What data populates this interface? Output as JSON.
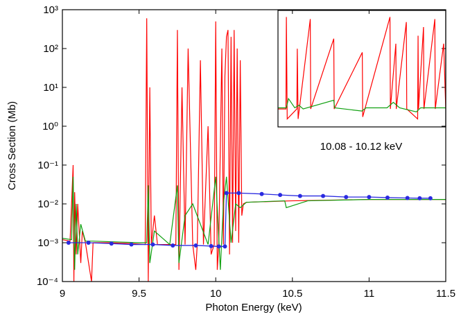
{
  "chart_data": [
    {
      "type": "line",
      "xlabel": "Photon Energy (keV)",
      "ylabel": "Cross Section (Mb)",
      "log_y": true,
      "xlim": [
        9,
        11.5
      ],
      "xticks": [
        9,
        9.5,
        10,
        10.5,
        11,
        11.5
      ],
      "ylim": [
        0.0001,
        1000
      ],
      "yticks": [
        {
          "value": 0.0001,
          "label": "10⁻⁴"
        },
        {
          "value": 0.001,
          "label": "10⁻³"
        },
        {
          "value": 0.01,
          "label": "10⁻²"
        },
        {
          "value": 0.1,
          "label": "10⁻¹"
        },
        {
          "value": 1,
          "label": "10⁰"
        },
        {
          "value": 10,
          "label": "10¹"
        },
        {
          "value": 100,
          "label": "10²"
        },
        {
          "value": 1000,
          "label": "10³"
        }
      ],
      "series": [
        {
          "color": "#ff0000",
          "x": [
            9,
            9.05,
            9.07,
            9.075,
            9.08,
            9.09,
            9.1,
            9.12,
            9.13,
            9.15,
            9.19,
            9.2,
            9.3,
            9.45,
            9.54,
            9.55,
            9.56,
            9.57,
            9.58,
            9.6,
            9.62,
            9.7,
            9.74,
            9.75,
            9.76,
            9.78,
            9.8,
            9.82,
            9.85,
            9.87,
            9.88,
            9.9,
            9.92,
            9.95,
            9.97,
            9.99,
            10.0,
            10.01,
            10.02,
            10.04,
            10.05,
            10.06,
            10.07,
            10.08,
            10.09,
            10.1,
            10.11,
            10.12,
            10.13,
            10.14,
            10.15,
            10.16,
            10.17,
            10.18,
            10.2,
            10.5,
            11,
            11.5
          ],
          "values": [
            0.0012,
            0.0011,
            0.1,
            0.0001,
            0.02,
            0.0005,
            0.01,
            0.0003,
            0.002,
            0.001,
            0.0001,
            0.001,
            0.001,
            0.00095,
            0.0009,
            600,
            0.0001,
            10,
            0.0009,
            0.005,
            0.0009,
            0.0009,
            0.0009,
            300,
            0.0002,
            10,
            0.0009,
            100,
            0.0009,
            0.0002,
            0.001,
            50,
            0.0009,
            1,
            0.0005,
            0.0009,
            500,
            0.0002,
            0.0009,
            100,
            0.0009,
            20,
            200,
            300,
            0.0005,
            200,
            0.001,
            300,
            0.002,
            100,
            0.001,
            50,
            0.005,
            0.01,
            0.011,
            0.012,
            0.013,
            0.013
          ]
        },
        {
          "color": "#10a010",
          "x": [
            9,
            9.06,
            9.07,
            9.08,
            9.09,
            9.1,
            9.12,
            9.15,
            9.2,
            9.5,
            9.55,
            9.56,
            9.57,
            9.6,
            9.7,
            9.75,
            9.76,
            9.8,
            9.85,
            9.9,
            9.95,
            10.0,
            10.03,
            10.05,
            10.07,
            10.1,
            10.13,
            10.16,
            10.2,
            10.45,
            10.46,
            10.6,
            11,
            11.5
          ],
          "values": [
            0.0013,
            0.0012,
            0.05,
            0.0002,
            0.01,
            0.0005,
            0.003,
            0.0011,
            0.0011,
            0.001,
            0.001,
            0.03,
            0.0003,
            0.002,
            0.0009,
            0.03,
            0.0003,
            0.005,
            0.01,
            0.003,
            0.0009,
            0.05,
            0.0002,
            0.01,
            0.05,
            0.001,
            0.01,
            0.008,
            0.011,
            0.012,
            0.008,
            0.012,
            0.013,
            0.013
          ]
        },
        {
          "color": "#2a2ae0",
          "markers": true,
          "x": [
            9.04,
            9.17,
            9.32,
            9.45,
            9.59,
            9.72,
            9.87,
            9.97,
            10.02,
            10.06,
            10.07,
            10.15,
            10.3,
            10.42,
            10.55,
            10.7,
            10.85,
            11,
            11.12,
            11.25,
            11.33,
            11.4
          ],
          "values": [
            0.001,
            0.001,
            0.00095,
            0.0009,
            0.0009,
            0.00085,
            0.00085,
            0.00082,
            0.0008,
            0.0008,
            0.019,
            0.019,
            0.018,
            0.017,
            0.016,
            0.016,
            0.015,
            0.015,
            0.0145,
            0.0142,
            0.014,
            0.014
          ]
        }
      ]
    },
    {
      "type": "line",
      "title": "10.08 - 10.12 keV",
      "log_y": true,
      "xlim": [
        10.08,
        10.12
      ],
      "ylim": [
        0.0001,
        1000
      ],
      "series": [
        {
          "color": "#ff0000",
          "x": [
            10.08,
            10.0819,
            10.082,
            10.0822,
            10.0845,
            10.0846,
            10.0848,
            10.0877,
            10.0878,
            10.0933,
            10.0934,
            10.1001,
            10.1002,
            10.1067,
            10.1068,
            10.1081,
            10.1082,
            10.1106,
            10.1107,
            10.1133,
            10.1134,
            10.1135,
            10.1147,
            10.1148,
            10.1174,
            10.1175,
            10.1195,
            10.12
          ],
          "values": [
            0.0012,
            0.0012,
            400,
            0.0003,
            0.0012,
            5,
            0.0003,
            300,
            0.0012,
            20,
            0.0012,
            3,
            0.0004,
            400,
            0.0012,
            10,
            0.0012,
            200,
            0.0012,
            0.0003,
            30,
            0.0012,
            100,
            0.0012,
            300,
            0.0012,
            10,
            0.0012
          ]
        },
        {
          "color": "#10a010",
          "x": [
            10.08,
            10.082,
            10.0825,
            10.084,
            10.085,
            10.086,
            10.0933,
            10.0935,
            10.1,
            10.101,
            10.106,
            10.1075,
            10.109,
            10.113,
            10.114,
            10.12
          ],
          "values": [
            0.0014,
            0.0014,
            0.005,
            0.0014,
            0.002,
            0.0012,
            0.004,
            0.0014,
            0.0009,
            0.0014,
            0.0014,
            0.003,
            0.0014,
            0.0008,
            0.0014,
            0.0014
          ]
        }
      ]
    }
  ]
}
